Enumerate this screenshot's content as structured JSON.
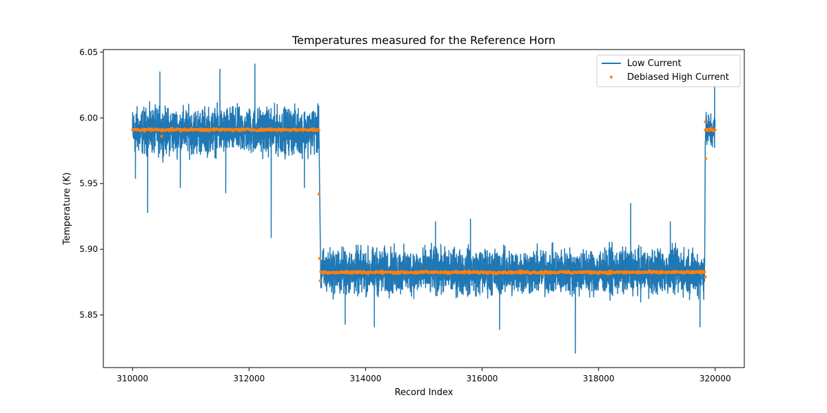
{
  "chart_data": {
    "type": "line",
    "title": "Temperatures measured for the Reference Horn",
    "xlabel": "Record Index",
    "ylabel": "Temperature (K)",
    "xlim": [
      309500,
      320500
    ],
    "ylim": [
      5.81,
      6.052
    ],
    "grid": false,
    "legend_position": "top-right",
    "x_ticks": [
      310000,
      312000,
      314000,
      316000,
      318000,
      320000
    ],
    "x_tick_labels": [
      "310000",
      "312000",
      "314000",
      "316000",
      "318000",
      "320000"
    ],
    "y_ticks": [
      5.85,
      5.9,
      5.95,
      6.0,
      6.05
    ],
    "y_tick_labels": [
      "5.85",
      "5.90",
      "5.95",
      "6.00",
      "6.05"
    ],
    "series": [
      {
        "name": "Low Current",
        "kind": "line",
        "color": "#1f77b4",
        "segments": [
          {
            "x_start": 310000,
            "x_end": 313200,
            "mean": 5.991,
            "band_low": 5.965,
            "band_high": 6.015
          },
          {
            "x_start": 313230,
            "x_end": 319820,
            "mean": 5.8825,
            "band_low": 5.858,
            "band_high": 5.908
          },
          {
            "x_start": 319830,
            "x_end": 320000,
            "mean": 5.991,
            "band_low": 5.97,
            "band_high": 6.01
          }
        ],
        "spikes": [
          {
            "x": 310050,
            "y": 5.954
          },
          {
            "x": 310260,
            "y": 5.928
          },
          {
            "x": 310470,
            "y": 6.035
          },
          {
            "x": 310820,
            "y": 5.947
          },
          {
            "x": 311500,
            "y": 6.037
          },
          {
            "x": 311600,
            "y": 5.943
          },
          {
            "x": 312100,
            "y": 6.041
          },
          {
            "x": 312380,
            "y": 5.909
          },
          {
            "x": 312950,
            "y": 5.947
          },
          {
            "x": 313650,
            "y": 5.843
          },
          {
            "x": 314150,
            "y": 5.841
          },
          {
            "x": 315200,
            "y": 5.921
          },
          {
            "x": 315800,
            "y": 5.923
          },
          {
            "x": 316300,
            "y": 5.839
          },
          {
            "x": 317600,
            "y": 5.821
          },
          {
            "x": 318550,
            "y": 5.935
          },
          {
            "x": 319230,
            "y": 5.921
          },
          {
            "x": 319740,
            "y": 5.841
          },
          {
            "x": 319990,
            "y": 6.025
          }
        ]
      },
      {
        "name": "Debiased High Current",
        "kind": "scatter",
        "color": "#ff7f0e",
        "segments": [
          {
            "x_start": 310000,
            "x_end": 313200,
            "mean": 5.991,
            "spread": 0.0015
          },
          {
            "x_start": 313230,
            "x_end": 319820,
            "mean": 5.8825,
            "spread": 0.0015
          },
          {
            "x_start": 319830,
            "x_end": 320000,
            "mean": 5.991,
            "spread": 0.0015
          }
        ],
        "outliers": [
          {
            "x": 310500,
            "y": 5.986
          },
          {
            "x": 313200,
            "y": 5.942
          },
          {
            "x": 313210,
            "y": 5.893
          },
          {
            "x": 313220,
            "y": 5.876
          },
          {
            "x": 319830,
            "y": 5.997
          },
          {
            "x": 319840,
            "y": 5.969
          },
          {
            "x": 319835,
            "y": 5.879
          }
        ]
      }
    ]
  }
}
